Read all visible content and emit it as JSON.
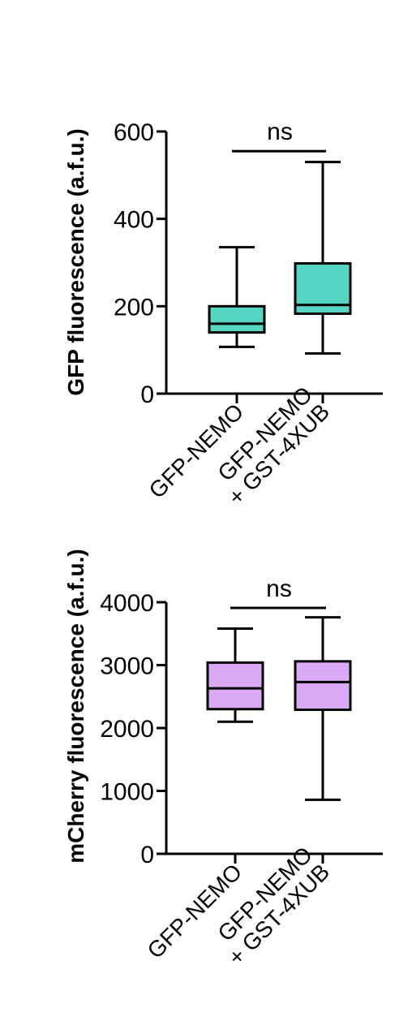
{
  "chart_data": [
    {
      "type": "box",
      "ylabel": "GFP fluorescence (a.f.u.)",
      "ylim": [
        0,
        600
      ],
      "yticks": [
        0,
        200,
        400,
        600
      ],
      "categories": [
        "GFP-NEMO",
        "GFP-NEMO\n+ GST-4XUB"
      ],
      "box_color": "#55d6c2",
      "boxes": [
        {
          "category": "GFP-NEMO",
          "min": 107,
          "q1": 140,
          "median": 160,
          "q3": 200,
          "max": 335
        },
        {
          "category": "GFP-NEMO + GST-4XUB",
          "min": 92,
          "q1": 183,
          "median": 203,
          "q3": 298,
          "max": 530
        }
      ],
      "significance": {
        "label": "ns",
        "y": 555
      }
    },
    {
      "type": "box",
      "ylabel": "mCherry fluorescence (a.f.u.)",
      "ylim": [
        0,
        4000
      ],
      "yticks": [
        0,
        1000,
        2000,
        3000,
        4000
      ],
      "categories": [
        "GFP-NEMO",
        "GFP-NEMO\n+ GST-4XUB"
      ],
      "box_color": "#dca9f7",
      "boxes": [
        {
          "category": "GFP-NEMO",
          "min": 2100,
          "q1": 2300,
          "median": 2630,
          "q3": 3040,
          "max": 3580
        },
        {
          "category": "GFP-NEMO + GST-4XUB",
          "min": 860,
          "q1": 2290,
          "median": 2730,
          "q3": 3060,
          "max": 3760
        }
      ],
      "significance": {
        "label": "ns",
        "y": 3910
      }
    }
  ]
}
